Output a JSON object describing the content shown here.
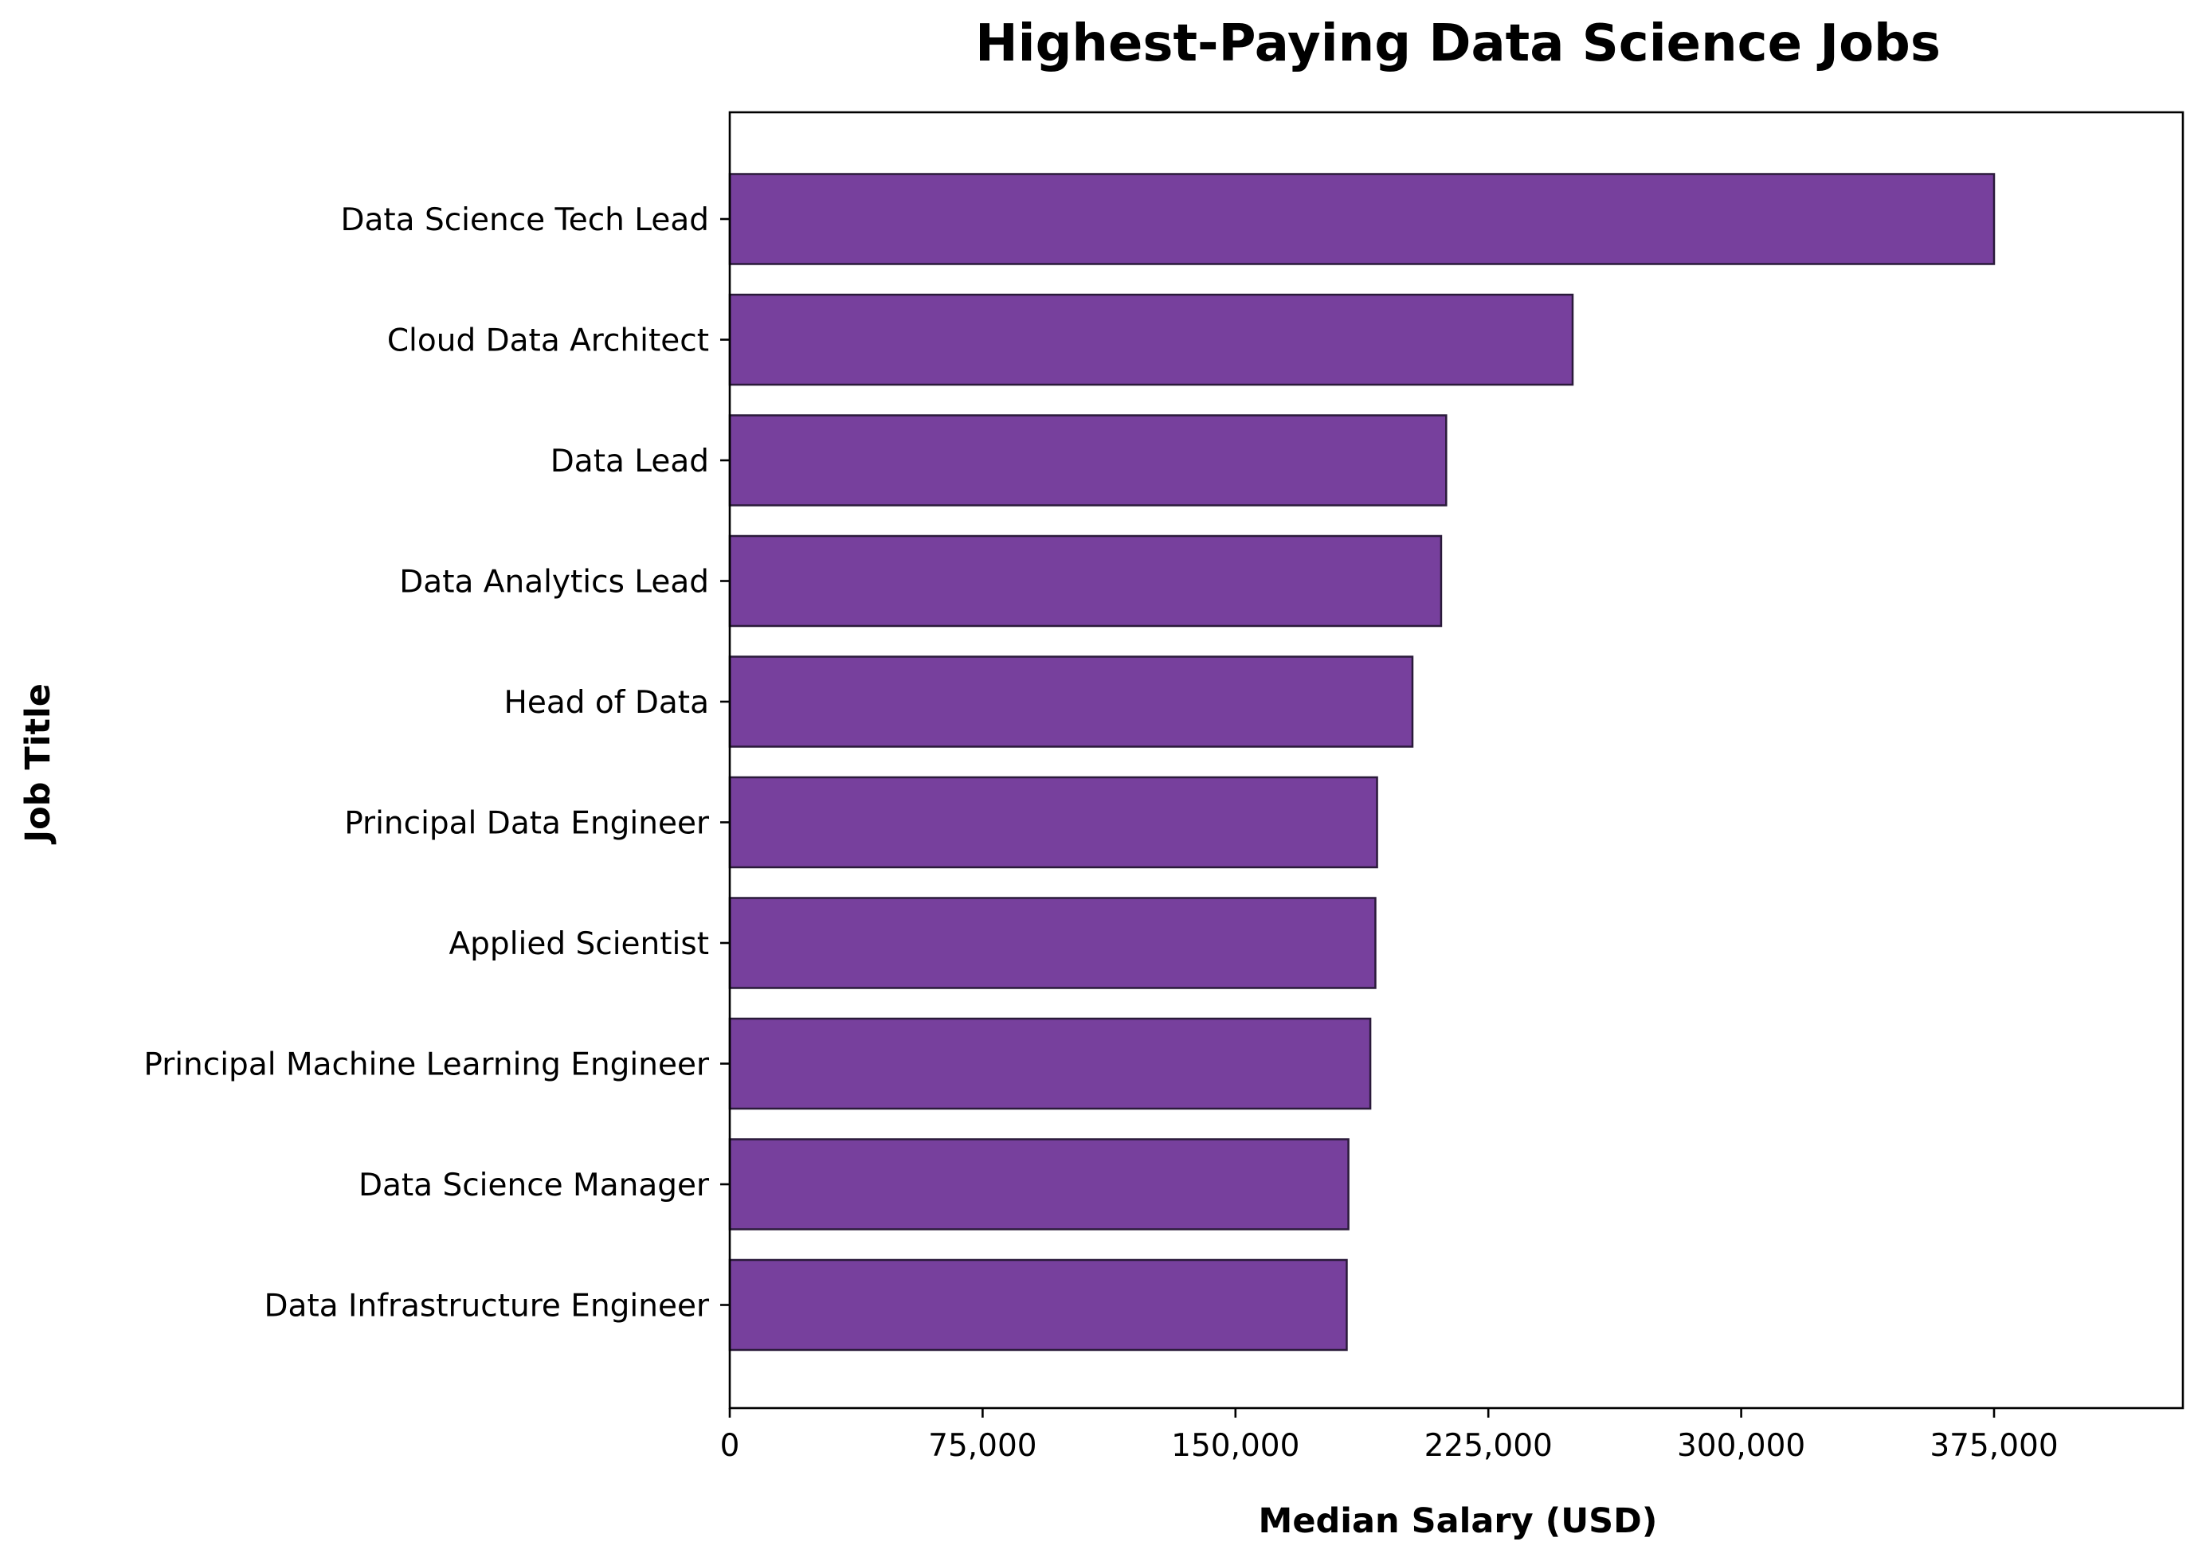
{
  "chart_data": {
    "type": "bar",
    "orientation": "horizontal",
    "title": "Highest-Paying Data Science Jobs",
    "xlabel": "Median Salary (USD)",
    "ylabel": "Job Title",
    "categories": [
      "Data Science Tech Lead",
      "Cloud Data Architect",
      "Data Lead",
      "Data Analytics Lead",
      "Head of Data",
      "Principal Data Engineer",
      "Applied Scientist",
      "Principal Machine Learning Engineer",
      "Data Science Manager",
      "Data Infrastructure Engineer"
    ],
    "values": [
      375000,
      250000,
      212500,
      211000,
      202500,
      192000,
      191500,
      190000,
      183500,
      183000
    ],
    "xlim": [
      0,
      431000
    ],
    "xticks": [
      0,
      75000,
      150000,
      225000,
      300000,
      375000
    ],
    "xtick_labels": [
      "0",
      "75,000",
      "150,000",
      "225,000",
      "300,000",
      "375,000"
    ],
    "grid": false,
    "legend": "none",
    "colors": {
      "bar_fill": "#77409d",
      "bar_edge": "#2a1a3a"
    }
  }
}
